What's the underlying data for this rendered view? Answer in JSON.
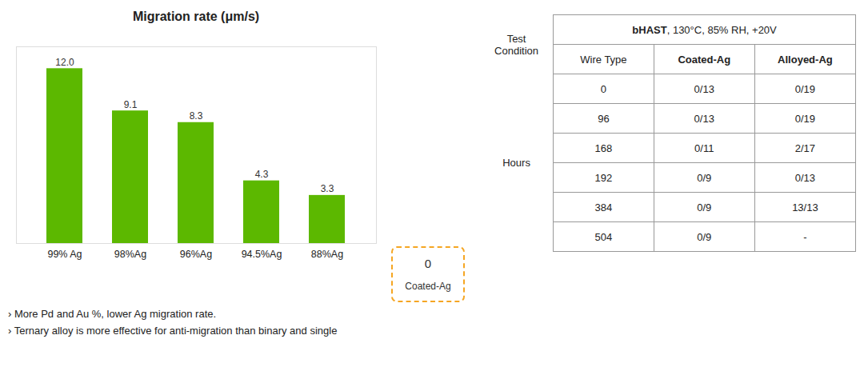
{
  "chart_data": {
    "type": "bar",
    "title": "Migration rate (μm/s)",
    "categories": [
      "99% Ag",
      "98%Ag",
      "96%Ag",
      "94.5%Ag",
      "88%Ag"
    ],
    "values": [
      12.0,
      9.1,
      8.3,
      4.3,
      3.3
    ],
    "value_labels": [
      "12.0",
      "9.1",
      "8.3",
      "4.3",
      "3.3"
    ],
    "color": "#5cb800",
    "ylim": [
      0,
      13.5
    ],
    "data_labels": true,
    "tick_labels": "x",
    "grid": false,
    "annotations": [
      {
        "text": [
          "0",
          "Coated-Ag"
        ],
        "color": "#f5a623"
      },
      {
        "text": "› More Pd and Au %, lower Ag migration rate."
      },
      {
        "text": "› Ternary alloy is more effective for anti-migration than binary and single"
      }
    ],
    "table": {
      "header": [
        "bHAST",
        ", 130°C, 85% RH, +20V"
      ],
      "columns": [
        "Wire Type",
        "Coated-Ag",
        "Alloyed-Ag"
      ],
      "row_labels": [
        "Test\nCondition",
        "Hours"
      ],
      "rows": [
        [
          "0",
          "0/13",
          "0/19"
        ],
        [
          "96",
          "0/13",
          "0/19"
        ],
        [
          "168",
          "0/11",
          "2/17"
        ],
        [
          "192",
          "0/9",
          "0/13"
        ],
        [
          "384",
          "0/9",
          "13/13"
        ],
        [
          "504",
          "0/9",
          "-"
        ]
      ]
    }
  }
}
